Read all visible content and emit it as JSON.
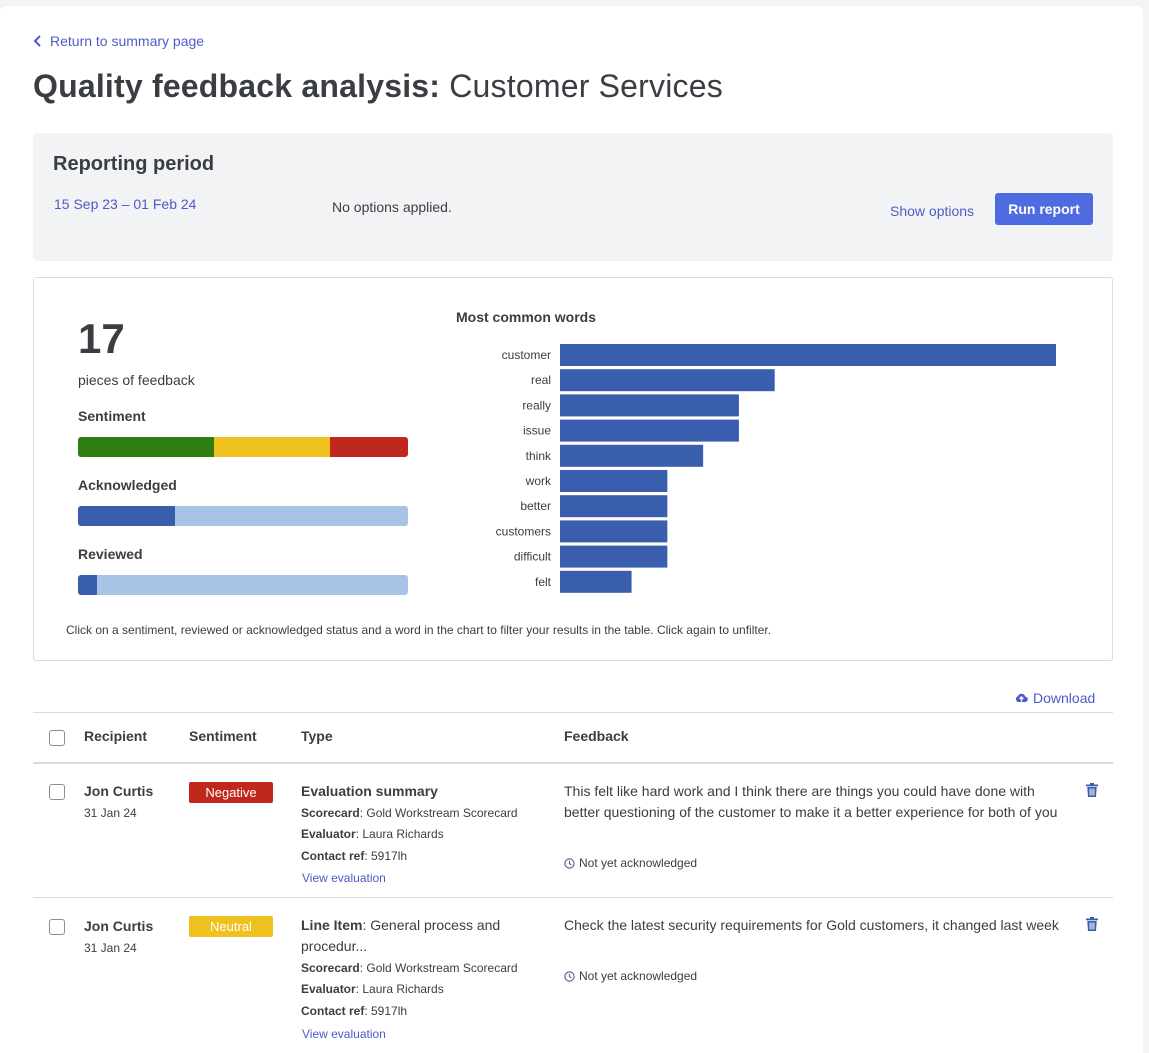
{
  "nav": {
    "back_label": "Return to summary page"
  },
  "title": {
    "bold": "Quality feedback analysis:",
    "light": "Customer Services"
  },
  "period": {
    "heading": "Reporting period",
    "dates": "15 Sep 23 – 01 Feb 24",
    "options_status": "No options applied.",
    "show_options_label": "Show options",
    "run_report_label": "Run report",
    "run_report_color": "#4e6ce0"
  },
  "summary": {
    "count": "17",
    "count_label": "pieces of feedback",
    "sentiment": {
      "label": "Sentiment",
      "segments": [
        {
          "name": "positive",
          "fraction": 0.412,
          "color": "#2e7d0f"
        },
        {
          "name": "neutral",
          "fraction": 0.353,
          "color": "#eec11f"
        },
        {
          "name": "negative",
          "fraction": 0.235,
          "color": "#c0281d"
        }
      ]
    },
    "acknowledged": {
      "label": "Acknowledged",
      "segments": [
        {
          "name": "acknowledged",
          "fraction": 0.294,
          "color": "#3a5eae"
        },
        {
          "name": "not-acknowledged",
          "fraction": 0.706,
          "color": "#a9c3e6"
        }
      ]
    },
    "reviewed": {
      "label": "Reviewed",
      "segments": [
        {
          "name": "reviewed",
          "fraction": 0.059,
          "color": "#3a5eae"
        },
        {
          "name": "not-reviewed",
          "fraction": 0.941,
          "color": "#a9c3e6"
        }
      ]
    },
    "footnote": "Click on a sentiment, reviewed or acknowledged status and a word in the chart to filter your results in the table. Click again to unfilter."
  },
  "chart_data": {
    "type": "bar",
    "orientation": "horizontal",
    "title": "Most common words",
    "categories": [
      "customer",
      "real",
      "really",
      "issue",
      "think",
      "work",
      "better",
      "customers",
      "difficult",
      "felt"
    ],
    "values": [
      14,
      6,
      5,
      5,
      4,
      3,
      3,
      3,
      3,
      2
    ],
    "xlim": [
      0,
      14
    ],
    "bar_color": "#3a5eae",
    "xlabel": "",
    "ylabel": ""
  },
  "table": {
    "download_label": "Download",
    "headers": {
      "recipient": "Recipient",
      "sentiment": "Sentiment",
      "type": "Type",
      "feedback": "Feedback"
    },
    "rows": [
      {
        "recipient": "Jon Curtis",
        "date": "31 Jan 24",
        "sentiment": "Negative",
        "type_bold": "Evaluation summary",
        "type_rest": "",
        "scorecard_label": "Scorecard",
        "scorecard": ": Gold Workstream Scorecard",
        "evaluator_label": "Evaluator",
        "evaluator": ": Laura Richards",
        "contact_label": "Contact ref",
        "contact": ": 5917lh",
        "view_label": "View evaluation",
        "feedback": "This felt like hard work and I think there are things you could have done with better questioning of the customer to make it a better experience for both of you",
        "ack": "Not yet acknowledged"
      },
      {
        "recipient": "Jon Curtis",
        "date": "31 Jan 24",
        "sentiment": "Neutral",
        "type_bold": "Line Item",
        "type_rest": ": General process and procedur...",
        "scorecard_label": "Scorecard",
        "scorecard": ": Gold Workstream Scorecard",
        "evaluator_label": "Evaluator",
        "evaluator": ": Laura Richards",
        "contact_label": "Contact ref",
        "contact": ": 5917lh",
        "view_label": "View evaluation",
        "feedback": "Check the latest security requirements for Gold customers, it changed last week",
        "ack": "Not yet acknowledged"
      }
    ]
  }
}
